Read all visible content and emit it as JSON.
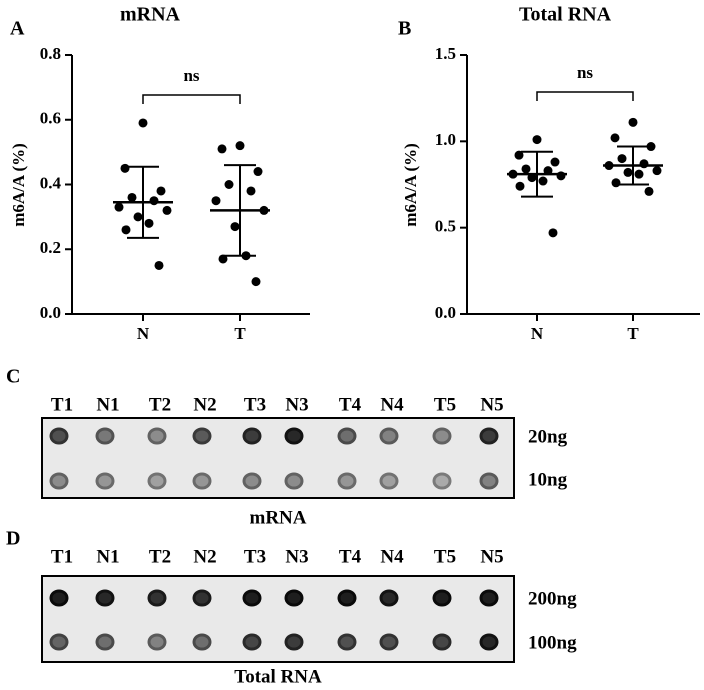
{
  "chart_data": [
    {
      "type": "dotplot",
      "panel": "A",
      "title": "mRNA",
      "ylabel": "m6A/A (%)",
      "categories": [
        "N",
        "T"
      ],
      "groups": [
        {
          "values": [
            0.59,
            0.45,
            0.38,
            0.36,
            0.35,
            0.33,
            0.32,
            0.3,
            0.28,
            0.26,
            0.15
          ],
          "mean": 0.345,
          "sd": 0.11
        },
        {
          "values": [
            0.52,
            0.51,
            0.44,
            0.4,
            0.38,
            0.35,
            0.32,
            0.27,
            0.18,
            0.17,
            0.1
          ],
          "mean": 0.32,
          "sd": 0.14
        }
      ],
      "ylim": [
        0,
        0.8
      ],
      "yticks": [
        {
          "value": 0,
          "label": "0.0"
        },
        0.2,
        0.4,
        0.6,
        0.8
      ],
      "annotation": "ns",
      "color": "#000000"
    },
    {
      "type": "dotplot",
      "panel": "B",
      "title": "Total RNA",
      "ylabel": "m6A/A (%)",
      "categories": [
        "N",
        "T"
      ],
      "groups": [
        {
          "values": [
            1.01,
            0.92,
            0.88,
            0.84,
            0.83,
            0.81,
            0.8,
            0.79,
            0.77,
            0.74,
            0.47
          ],
          "mean": 0.81,
          "sd": 0.13
        },
        {
          "values": [
            1.11,
            1.02,
            0.97,
            0.9,
            0.87,
            0.86,
            0.83,
            0.82,
            0.81,
            0.76,
            0.71
          ],
          "mean": 0.86,
          "sd": 0.11
        }
      ],
      "ylim": [
        0,
        1.5
      ],
      "yticks": [
        {
          "value": 0,
          "label": "0.0"
        },
        0.5,
        {
          "value": 1,
          "label": "1.0"
        },
        1.5
      ],
      "annotation": "ns",
      "color": "#000000"
    }
  ],
  "blots": [
    {
      "panel": "C",
      "lanes": [
        "T1",
        "N1",
        "T2",
        "N2",
        "T3",
        "N3",
        "T4",
        "N4",
        "T5",
        "N5"
      ],
      "rows": [
        "20ng",
        "10ng"
      ],
      "caption": "mRNA"
    },
    {
      "panel": "D",
      "lanes": [
        "T1",
        "N1",
        "T2",
        "N2",
        "T3",
        "N3",
        "T4",
        "N4",
        "T5",
        "N5"
      ],
      "rows": [
        "200ng",
        "100ng"
      ],
      "caption": "Total RNA"
    }
  ]
}
